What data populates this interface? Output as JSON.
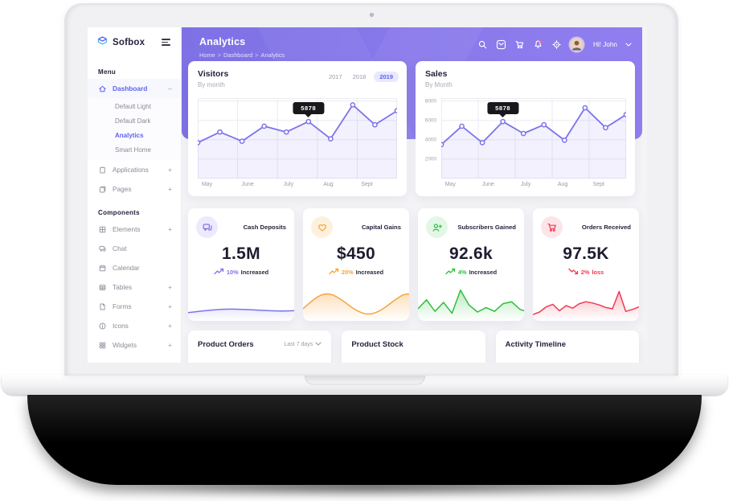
{
  "sidebar": {
    "brand": "Sofbox",
    "menu_label": "Menu",
    "components_label": "Components",
    "menu": [
      {
        "id": "dashboard",
        "label": "Dashboard",
        "icon": "home",
        "suffix": "-",
        "active": true,
        "children": [
          {
            "id": "default-light",
            "label": "Default Light",
            "active": false
          },
          {
            "id": "default-dark",
            "label": "Default Dark",
            "active": false
          },
          {
            "id": "analytics",
            "label": "Analytics",
            "active": true
          },
          {
            "id": "smart-home",
            "label": "Smart Home",
            "active": false
          }
        ]
      },
      {
        "id": "applications",
        "label": "Applications",
        "icon": "clipboard",
        "suffix": "+",
        "active": false
      },
      {
        "id": "pages",
        "label": "Pages",
        "icon": "pages",
        "suffix": "+",
        "active": false
      }
    ],
    "components": [
      {
        "id": "elements",
        "label": "Elements",
        "icon": "grid",
        "suffix": "+"
      },
      {
        "id": "chat",
        "label": "Chat",
        "icon": "chat",
        "suffix": ""
      },
      {
        "id": "calendar",
        "label": "Calendar",
        "icon": "calendar",
        "suffix": ""
      },
      {
        "id": "tables",
        "label": "Tables",
        "icon": "table",
        "suffix": "+"
      },
      {
        "id": "forms",
        "label": "Forms",
        "icon": "file",
        "suffix": "+"
      },
      {
        "id": "icons",
        "label": "Icons",
        "icon": "info",
        "suffix": "+"
      },
      {
        "id": "widgets",
        "label": "Widgets",
        "icon": "widget",
        "suffix": "+"
      }
    ]
  },
  "header": {
    "title": "Analytics",
    "breadcrumb": [
      "Home",
      "Dashboard",
      "Analytics"
    ],
    "separator": ">",
    "icons": [
      {
        "id": "search"
      },
      {
        "id": "mail"
      },
      {
        "id": "cart"
      },
      {
        "id": "bell",
        "badge": true
      },
      {
        "id": "locate"
      }
    ],
    "user": {
      "name": "Hi! John"
    }
  },
  "chart_data": [
    {
      "type": "line",
      "name": "visitors",
      "title": "Visitors",
      "subtitle": "By month",
      "years": [
        "2017",
        "2018",
        "2019"
      ],
      "active_year": "2019",
      "x": [
        "May",
        "June",
        "July",
        "Aug",
        "Sept"
      ],
      "values": [
        3700,
        4800,
        3850,
        5400,
        4800,
        5878,
        4100,
        7600,
        5550,
        7000
      ],
      "ylim": [
        0,
        8300
      ],
      "yticks": [],
      "color": "#7c74ea",
      "grid": true,
      "legend_position": "none",
      "tooltip": {
        "index": 5,
        "label": "5878"
      }
    },
    {
      "type": "line",
      "name": "sales",
      "title": "Sales",
      "subtitle": "By Month",
      "x": [
        "May",
        "June",
        "July",
        "Aug",
        "Sept"
      ],
      "values": [
        3500,
        5400,
        3700,
        5878,
        4650,
        5550,
        3950,
        7300,
        5250,
        6600
      ],
      "ylim": [
        0,
        8300
      ],
      "yticks": [
        8000,
        6000,
        4000,
        2000
      ],
      "color": "#7c74ea",
      "grid": true,
      "legend_position": "none",
      "tooltip": {
        "index": 3,
        "label": "5878"
      }
    }
  ],
  "stats": [
    {
      "id": "cash-deposits",
      "label": "Cash Deposits",
      "value": "1.5M",
      "pct": "10%",
      "word": "Increased",
      "dir": "up",
      "icon": "message",
      "color": "#7c74ea",
      "tint": "#eceafc",
      "spark": {
        "type": "area",
        "smooth": true,
        "values": [
          18,
          30,
          28,
          22,
          26,
          24,
          40,
          52,
          46,
          38,
          42,
          62,
          70,
          60,
          56,
          64
        ]
      }
    },
    {
      "id": "capital-gains",
      "label": "Capital Gains",
      "value": "$450",
      "pct": "20%",
      "word": "Increased",
      "dir": "up",
      "icon": "heart",
      "color": "#f7a33c",
      "tint": "#fdf1de",
      "spark": {
        "type": "area",
        "smooth": true,
        "values": [
          30,
          68,
          80,
          58,
          26,
          10,
          24,
          56,
          82,
          60,
          28,
          12,
          26,
          58,
          78,
          52,
          26,
          14
        ]
      }
    },
    {
      "id": "subscribers-gained",
      "label": "Subscribers Gained",
      "value": "92.6k",
      "pct": "4%",
      "word": "Increased",
      "dir": "up",
      "icon": "user-plus",
      "color": "#2fbf3f",
      "tint": "#e3f7e6",
      "spark": {
        "type": "area",
        "smooth": false,
        "values": [
          30,
          58,
          22,
          50,
          16,
          88,
          42,
          20,
          34,
          22,
          46,
          52,
          28,
          20,
          36,
          30,
          28,
          52
        ]
      }
    },
    {
      "id": "orders-received",
      "label": "Orders Received",
      "value": "97.5K",
      "pct": "2%",
      "word": "loss",
      "dir": "down",
      "icon": "cart",
      "color": "#ee3b52",
      "tint": "#fde4e8",
      "spark": {
        "type": "area",
        "smooth": false,
        "values": [
          12,
          20,
          36,
          44,
          24,
          40,
          32,
          46,
          52,
          48,
          42,
          34,
          30,
          84,
          22,
          28,
          36
        ]
      }
    }
  ],
  "bottom_cards": [
    {
      "id": "product-orders",
      "title": "Product Orders",
      "filter": "Last 7 days"
    },
    {
      "id": "product-stock",
      "title": "Product Stock",
      "filter": ""
    },
    {
      "id": "activity-timeline",
      "title": "Activity Timeline",
      "filter": ""
    }
  ]
}
